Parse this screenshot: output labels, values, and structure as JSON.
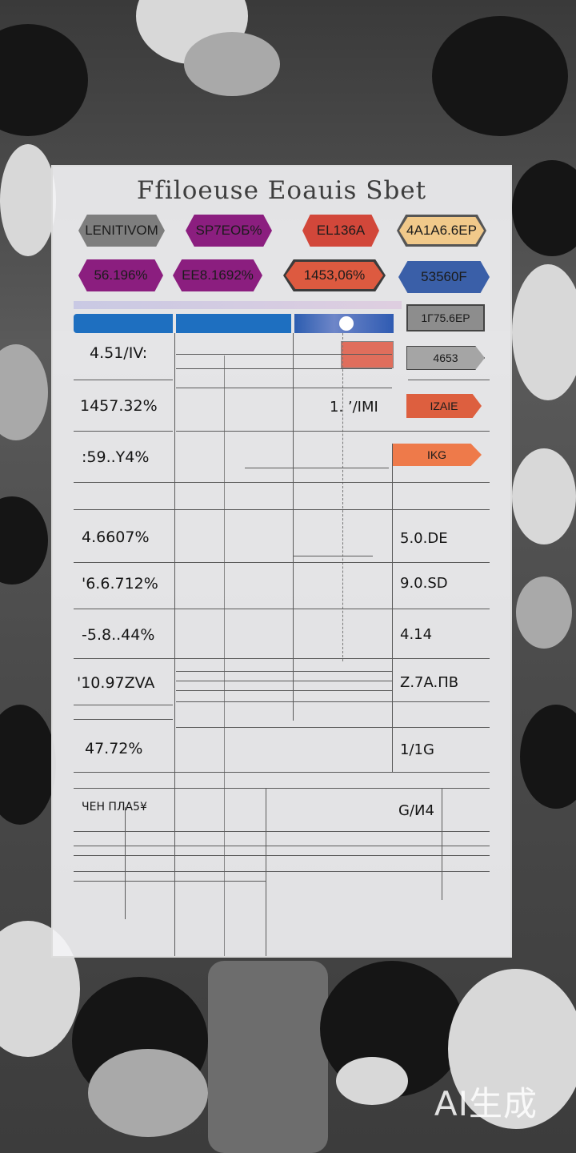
{
  "title": "Ffiloeuse Eoauis Sbet",
  "tags_row1": [
    {
      "label": "LENITIVOM",
      "fill": "#7e7e7e",
      "ring": false
    },
    {
      "label": "SP7ЕОБ%",
      "fill": "#8b1e7f",
      "ring": false
    },
    {
      "label": "EL136A",
      "fill": "#d2473a",
      "ring": false
    },
    {
      "label": "4А1А6.6ЕР",
      "fill": "#f1c98a",
      "ring": true
    }
  ],
  "tags_row2": [
    {
      "label": "56.196%",
      "fill": "#8b1e7f",
      "ring": false
    },
    {
      "label": "EE8.1692%",
      "fill": "#8b1e7f",
      "ring": false
    },
    {
      "label": "1453,06%",
      "fill": "#dd5a40",
      "ring": true
    },
    {
      "label": "53560F",
      "fill": "#3a5fa8",
      "ring": true
    }
  ],
  "side_buttons": [
    {
      "label": "1Г75.6ЕР",
      "fill": "#9a9a9a"
    },
    {
      "label": "4653 ",
      "fill": "#a8a8a8"
    },
    {
      "label": "IZAIE",
      "fill": "#dd5f3f"
    },
    {
      "label": "IKG",
      "fill": "#ee7a4a"
    }
  ],
  "row_labels": [
    "4.51/IV:",
    "1457.32%",
    ":59..Y4%",
    "4.6607%",
    "'6.6.712%",
    "-5.8..44%",
    "'10.97ZVA",
    "47.72%"
  ],
  "right_labels": [
    "5.0.DE",
    "9.0.SD",
    "4.14",
    "Z.7A.ПB",
    "1/1G"
  ],
  "mid_label": "1. ’/IMI",
  "footer_left": "ЧЕН ПЛА5¥",
  "footer_right": "G/И4",
  "watermark": "AI生成",
  "colors": {
    "header_blue": "#1e6fc0",
    "sheet_bg": "#f4f4f6",
    "accent_red": "#e05a44"
  }
}
